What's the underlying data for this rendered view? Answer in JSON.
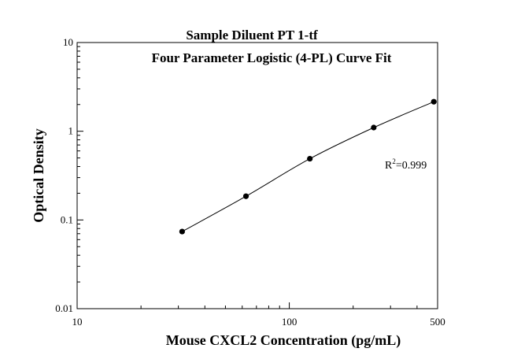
{
  "chart_data": {
    "type": "scatter",
    "title": "Sample Diluent PT 1-tf",
    "subtitle": "Four Parameter Logistic (4-PL) Curve Fit",
    "xlabel": "Mouse CXCL2 Concentration (pg/mL)",
    "ylabel": "Optical Density",
    "x_scale": "log",
    "y_scale": "log",
    "xlim": [
      10,
      500
    ],
    "ylim": [
      0.01,
      10
    ],
    "x_tick_labels": [
      "10",
      "100",
      "500"
    ],
    "x_tick_values": [
      10,
      100,
      500
    ],
    "y_tick_labels": [
      "0.01",
      "0.1",
      "1",
      "10"
    ],
    "y_tick_values": [
      0.01,
      0.1,
      1,
      10
    ],
    "grid": false,
    "series": [
      {
        "x": [
          31.25,
          62.5,
          125,
          250,
          480
        ],
        "y": [
          0.074,
          0.185,
          0.49,
          1.1,
          2.15
        ]
      }
    ],
    "fit_curve": "4-PL",
    "annotation": {
      "prefix": "R",
      "superscript": "2",
      "value": "=0.999"
    }
  }
}
